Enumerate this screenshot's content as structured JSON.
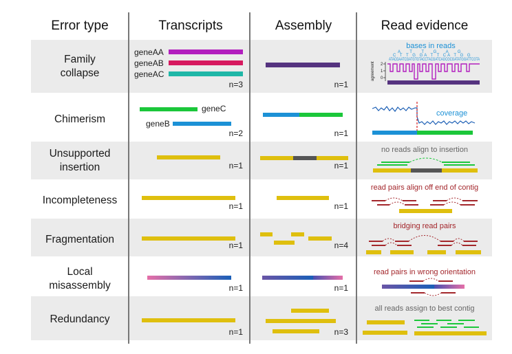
{
  "headers": {
    "error_type": "Error type",
    "transcripts": "Transcripts",
    "assembly": "Assembly",
    "read_evidence": "Read evidence"
  },
  "colors": {
    "yellow": "#dfbf0e",
    "purple": "#55337f",
    "magenta": "#b21ebe",
    "crimson": "#d6195f",
    "teal": "#1fb7a7",
    "green": "#1bc73a",
    "blue": "#1c91d6",
    "darkred": "#a3262b",
    "gray": "#555555",
    "pink": "#e56fa8",
    "rowshade": "#ebebeb"
  },
  "rows": [
    {
      "id": "family-collapse",
      "label_lines": [
        "Family",
        "collapse"
      ],
      "transcripts_n": "n=3",
      "assembly_n": "n=1",
      "genes": [
        "geneAA",
        "geneAB",
        "geneAC"
      ],
      "evidence": {
        "title": "bases in reads",
        "ylabel": "agreement",
        "ticks": [
          "2",
          "1",
          "0"
        ],
        "bases_top": "ATACGAATCGATGTGTACCTACGATCAGCGCGATATGGATTCGTA",
        "bases_mid": "C T T G GA T T CA T G G",
        "bases_hi": "A T T G A G"
      }
    },
    {
      "id": "chimerism",
      "label_lines": [
        "Chimerism"
      ],
      "transcripts_n": "n=2",
      "assembly_n": "n=1",
      "genes": [
        "geneC",
        "geneB"
      ],
      "evidence": {
        "title": "coverage"
      }
    },
    {
      "id": "unsupported-insertion",
      "label_lines": [
        "Unsupported",
        "insertion"
      ],
      "transcripts_n": "n=1",
      "assembly_n": "n=1",
      "evidence": {
        "title": "no reads align to insertion"
      }
    },
    {
      "id": "incompleteness",
      "label_lines": [
        "Incompleteness"
      ],
      "transcripts_n": "n=1",
      "assembly_n": "n=1",
      "evidence": {
        "title": "read pairs align off end of contig"
      }
    },
    {
      "id": "fragmentation",
      "label_lines": [
        "Fragmentation"
      ],
      "transcripts_n": "n=1",
      "assembly_n": "n=4",
      "evidence": {
        "title": "bridging read pairs"
      }
    },
    {
      "id": "local-misassembly",
      "label_lines": [
        "Local",
        "misassembly"
      ],
      "transcripts_n": "n=1",
      "assembly_n": "n=1",
      "evidence": {
        "title": "read pairs in wrong orientation"
      }
    },
    {
      "id": "redundancy",
      "label_lines": [
        "Redundancy"
      ],
      "transcripts_n": "n=1",
      "assembly_n": "n=3",
      "evidence": {
        "title": "all reads assign to best contig"
      }
    }
  ]
}
